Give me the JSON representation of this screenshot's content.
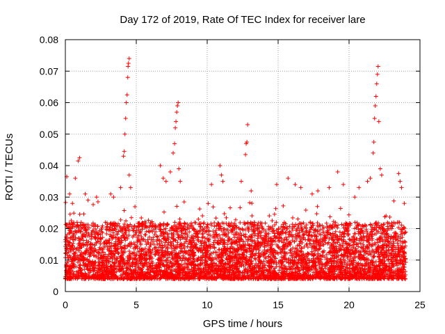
{
  "chart_data": {
    "type": "scatter",
    "title": "Day 172 of 2019, Rate Of TEC Index for receiver lare",
    "xlabel": "GPS time / hours",
    "ylabel": "ROTI / TECUs",
    "xlim": [
      0,
      25
    ],
    "ylim": [
      0,
      0.08
    ],
    "x_ticks": [
      0,
      5,
      10,
      15,
      20,
      25
    ],
    "x_tick_labels": [
      "0",
      "5",
      "10",
      "15",
      "20",
      "25"
    ],
    "y_ticks": [
      0,
      0.01,
      0.02,
      0.03,
      0.04,
      0.05,
      0.06,
      0.07,
      0.08
    ],
    "y_tick_labels": [
      "0",
      "0.01",
      "0.02",
      "0.03",
      "0.04",
      "0.05",
      "0.06",
      "0.07",
      "0.08"
    ],
    "grid": true,
    "marker": "+",
    "marker_color": "#ff0000",
    "x_data_range": [
      0,
      24
    ],
    "baseline_band": [
      0.004,
      0.022
    ],
    "series": [
      {
        "name": "ROTI",
        "points": [
          [
            0.1,
            0.0365
          ],
          [
            0.3,
            0.031
          ],
          [
            0.5,
            0.028
          ],
          [
            0.7,
            0.036
          ],
          [
            0.9,
            0.0415
          ],
          [
            1.0,
            0.0425
          ],
          [
            1.4,
            0.031
          ],
          [
            1.6,
            0.029
          ],
          [
            2.2,
            0.03
          ],
          [
            2.3,
            0.0285
          ],
          [
            3.2,
            0.031
          ],
          [
            3.4,
            0.03
          ],
          [
            3.9,
            0.033
          ],
          [
            4.1,
            0.043
          ],
          [
            4.15,
            0.0445
          ],
          [
            4.2,
            0.05
          ],
          [
            4.25,
            0.055
          ],
          [
            4.3,
            0.06
          ],
          [
            4.35,
            0.0625
          ],
          [
            4.4,
            0.068
          ],
          [
            4.42,
            0.0715
          ],
          [
            4.45,
            0.0725
          ],
          [
            4.5,
            0.074
          ],
          [
            4.5,
            0.037
          ],
          [
            4.6,
            0.033
          ],
          [
            6.7,
            0.04
          ],
          [
            6.9,
            0.036
          ],
          [
            7.1,
            0.035
          ],
          [
            7.4,
            0.038
          ],
          [
            7.6,
            0.044
          ],
          [
            7.7,
            0.047
          ],
          [
            7.75,
            0.052
          ],
          [
            7.8,
            0.054
          ],
          [
            7.85,
            0.057
          ],
          [
            7.9,
            0.059
          ],
          [
            7.95,
            0.06
          ],
          [
            8.0,
            0.039
          ],
          [
            8.1,
            0.035
          ],
          [
            10.9,
            0.04
          ],
          [
            11.0,
            0.037
          ],
          [
            11.1,
            0.035
          ],
          [
            10.3,
            0.034
          ],
          [
            12.4,
            0.035
          ],
          [
            12.7,
            0.0435
          ],
          [
            12.75,
            0.047
          ],
          [
            12.8,
            0.0475
          ],
          [
            12.85,
            0.053
          ],
          [
            13.1,
            0.032
          ],
          [
            14.9,
            0.034
          ],
          [
            15.7,
            0.036
          ],
          [
            16.2,
            0.034
          ],
          [
            16.6,
            0.033
          ],
          [
            17.4,
            0.031
          ],
          [
            17.8,
            0.032
          ],
          [
            18.6,
            0.033
          ],
          [
            19.2,
            0.038
          ],
          [
            19.6,
            0.034
          ],
          [
            20.4,
            0.03
          ],
          [
            20.7,
            0.033
          ],
          [
            21.3,
            0.035
          ],
          [
            21.5,
            0.036
          ],
          [
            21.7,
            0.044
          ],
          [
            21.75,
            0.0475
          ],
          [
            21.8,
            0.055
          ],
          [
            21.85,
            0.059
          ],
          [
            21.9,
            0.062
          ],
          [
            21.95,
            0.066
          ],
          [
            22.0,
            0.069
          ],
          [
            22.05,
            0.0715
          ],
          [
            22.1,
            0.054
          ],
          [
            22.2,
            0.039
          ],
          [
            22.3,
            0.037
          ],
          [
            23.5,
            0.0375
          ],
          [
            23.6,
            0.035
          ],
          [
            23.7,
            0.033
          ],
          [
            23.9,
            0.028
          ]
        ]
      }
    ]
  }
}
